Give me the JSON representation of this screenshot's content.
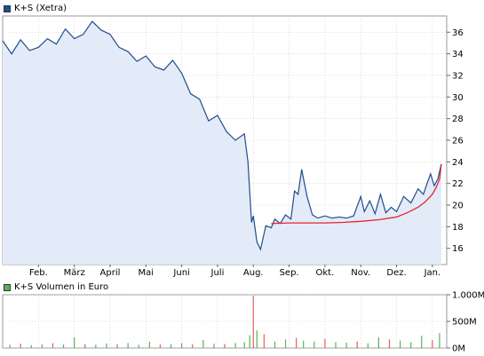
{
  "colors": {
    "price_line": "#1f4e8c",
    "price_fill": "#e3ebf8",
    "trend_line": "#e3262a",
    "volume_up": "#55b455",
    "volume_down": "#e06060",
    "grid": "#c9c9c9",
    "legend_price": "#1f4e8c",
    "legend_volume": "#55b455"
  },
  "chart_data": [
    {
      "type": "line",
      "title": "",
      "legend": [
        "K+S (Xetra)"
      ],
      "legend_position": "top-left",
      "grid": true,
      "y_axis_side": "right",
      "ylim": [
        14.5,
        37.5
      ],
      "yticks": [
        16,
        18,
        20,
        22,
        24,
        26,
        28,
        30,
        32,
        34,
        36
      ],
      "ytick_labels": [
        "16",
        "18",
        "20",
        "22",
        "24",
        "26",
        "28",
        "30",
        "32",
        "34",
        "36"
      ],
      "xlim": [
        0,
        12.4
      ],
      "xtick_labels": [
        "Feb.",
        "März",
        "April",
        "Mai",
        "Juni",
        "Juli",
        "Aug.",
        "Sep.",
        "Okt.",
        "Nov.",
        "Dez.",
        "Jan."
      ],
      "xtick_positions": [
        1,
        2,
        3,
        4,
        5,
        6,
        7,
        8,
        9,
        10,
        11,
        12
      ],
      "series": [
        {
          "name": "K+S (Xetra)",
          "x": [
            0,
            0.25,
            0.5,
            0.75,
            1.0,
            1.25,
            1.5,
            1.75,
            2.0,
            2.25,
            2.5,
            2.75,
            3.0,
            3.25,
            3.5,
            3.75,
            4.0,
            4.25,
            4.5,
            4.75,
            5.0,
            5.25,
            5.5,
            5.75,
            6.0,
            6.25,
            6.5,
            6.75,
            6.85,
            6.95,
            7.0,
            7.1,
            7.2,
            7.35,
            7.5,
            7.6,
            7.75,
            7.9,
            8.05,
            8.15,
            8.25,
            8.35,
            8.5,
            8.65,
            8.8,
            9.0,
            9.2,
            9.4,
            9.6,
            9.8,
            10.0,
            10.1,
            10.25,
            10.4,
            10.55,
            10.7,
            10.85,
            11.0,
            11.2,
            11.4,
            11.6,
            11.75,
            11.85,
            11.95,
            12.05,
            12.15,
            12.25
          ],
          "values": [
            35.2,
            34.0,
            35.3,
            34.3,
            34.6,
            35.4,
            34.9,
            36.3,
            35.4,
            35.8,
            37.0,
            36.2,
            35.8,
            34.6,
            34.2,
            33.3,
            33.8,
            32.8,
            32.5,
            33.4,
            32.2,
            30.3,
            29.8,
            27.8,
            28.3,
            26.8,
            26.0,
            26.6,
            24.0,
            18.4,
            19.0,
            16.6,
            15.9,
            18.1,
            17.9,
            18.7,
            18.3,
            19.1,
            18.7,
            21.3,
            21.0,
            23.3,
            20.8,
            19.1,
            18.8,
            19.0,
            18.8,
            18.9,
            18.8,
            19.0,
            20.8,
            19.4,
            20.4,
            19.2,
            21.0,
            19.3,
            19.8,
            19.4,
            20.8,
            20.2,
            21.5,
            21.0,
            22.0,
            22.9,
            21.8,
            22.4,
            23.8
          ]
        },
        {
          "name": "trend",
          "x": [
            7.5,
            8.0,
            8.5,
            9.0,
            9.5,
            10.0,
            10.5,
            11.0,
            11.3,
            11.6,
            11.8,
            12.0,
            12.1,
            12.2,
            12.25
          ],
          "values": [
            18.3,
            18.35,
            18.35,
            18.35,
            18.4,
            18.5,
            18.65,
            18.9,
            19.3,
            19.8,
            20.3,
            21.0,
            21.6,
            22.4,
            23.8
          ]
        }
      ]
    },
    {
      "type": "bar",
      "title": "",
      "legend": [
        "K+S Volumen in Euro"
      ],
      "legend_position": "top-left",
      "grid": true,
      "y_axis_side": "right",
      "ylim": [
        0,
        1000
      ],
      "yticks": [
        0,
        500,
        1000
      ],
      "ytick_labels": [
        "0M",
        "500M",
        "1.000M"
      ],
      "xlim": [
        0,
        12.4
      ],
      "series": [
        {
          "name": "K+S Volumen in Euro",
          "x": [
            0.2,
            0.5,
            0.8,
            1.1,
            1.4,
            1.7,
            2.0,
            2.3,
            2.6,
            2.9,
            3.2,
            3.5,
            3.8,
            4.1,
            4.4,
            4.7,
            5.0,
            5.3,
            5.6,
            5.9,
            6.2,
            6.5,
            6.75,
            6.9,
            7.0,
            7.1,
            7.3,
            7.6,
            7.9,
            8.2,
            8.4,
            8.7,
            9.0,
            9.3,
            9.6,
            9.9,
            10.2,
            10.5,
            10.8,
            11.1,
            11.4,
            11.7,
            12.0,
            12.2
          ],
          "values": [
            60,
            80,
            55,
            70,
            90,
            65,
            200,
            75,
            60,
            85,
            70,
            95,
            60,
            120,
            65,
            75,
            90,
            70,
            150,
            80,
            75,
            95,
            110,
            240,
            980,
            330,
            260,
            120,
            160,
            190,
            140,
            120,
            170,
            110,
            100,
            120,
            90,
            200,
            160,
            140,
            110,
            230,
            150,
            280
          ],
          "direction": [
            "up",
            "down",
            "up",
            "up",
            "down",
            "up",
            "up",
            "down",
            "up",
            "up",
            "down",
            "up",
            "up",
            "up",
            "down",
            "up",
            "up",
            "down",
            "up",
            "up",
            "down",
            "up",
            "up",
            "up",
            "down",
            "up",
            "down",
            "up",
            "up",
            "down",
            "up",
            "up",
            "down",
            "up",
            "up",
            "down",
            "up",
            "up",
            "down",
            "up",
            "up",
            "up",
            "down",
            "up"
          ]
        }
      ]
    }
  ]
}
